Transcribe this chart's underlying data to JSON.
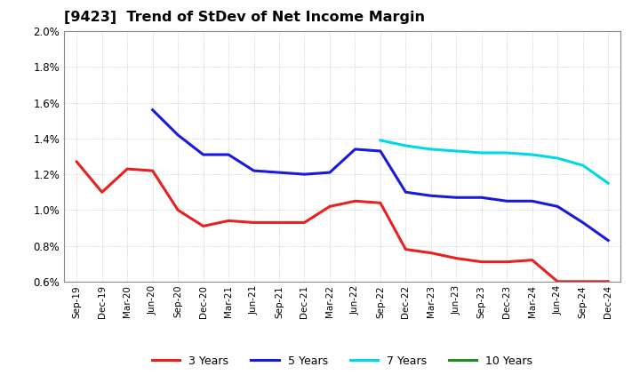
{
  "title": "[9423]  Trend of StDev of Net Income Margin",
  "x_labels": [
    "Sep-19",
    "Dec-19",
    "Mar-20",
    "Jun-20",
    "Sep-20",
    "Dec-20",
    "Mar-21",
    "Jun-21",
    "Sep-21",
    "Dec-21",
    "Mar-22",
    "Jun-22",
    "Sep-22",
    "Dec-22",
    "Mar-23",
    "Jun-23",
    "Sep-23",
    "Dec-23",
    "Mar-24",
    "Jun-24",
    "Sep-24",
    "Dec-24"
  ],
  "series_3y": [
    0.0127,
    0.011,
    0.0123,
    0.0122,
    0.01,
    0.0091,
    0.0094,
    0.0093,
    0.0093,
    0.0093,
    0.0102,
    0.0105,
    0.0104,
    0.0078,
    0.0076,
    0.0073,
    0.0071,
    0.0071,
    0.0072,
    0.006,
    0.006,
    0.006
  ],
  "series_5y": [
    null,
    null,
    null,
    0.0156,
    0.0142,
    0.0131,
    0.0131,
    0.0122,
    0.0121,
    0.012,
    0.0121,
    0.0134,
    0.0133,
    0.011,
    0.0108,
    0.0107,
    0.0107,
    0.0105,
    0.0105,
    0.0102,
    0.0093,
    0.0083
  ],
  "series_7y": [
    null,
    null,
    null,
    null,
    null,
    null,
    null,
    null,
    null,
    null,
    null,
    null,
    0.0139,
    0.0136,
    0.0134,
    0.0133,
    0.0132,
    0.0132,
    0.0131,
    0.0129,
    0.0125,
    0.0115
  ],
  "series_10y": [
    null,
    null,
    null,
    null,
    null,
    null,
    null,
    null,
    null,
    null,
    null,
    null,
    null,
    null,
    null,
    null,
    null,
    null,
    null,
    null,
    null,
    null
  ],
  "color_3y": "#e82020",
  "color_5y": "#1a1adb",
  "color_7y": "#00d8e8",
  "color_10y": "#228B22",
  "ylim_lo": 0.006,
  "ylim_hi": 0.02,
  "yticks": [
    0.006,
    0.008,
    0.01,
    0.012,
    0.014,
    0.016,
    0.018,
    0.02
  ],
  "background_color": "#ffffff",
  "grid_color": "#aaaaaa",
  "linewidth": 2.2,
  "legend_labels": [
    "3 Years",
    "5 Years",
    "7 Years",
    "10 Years"
  ],
  "legend_colors": [
    "#e82020",
    "#1a1adb",
    "#00d8e8",
    "#228B22"
  ]
}
